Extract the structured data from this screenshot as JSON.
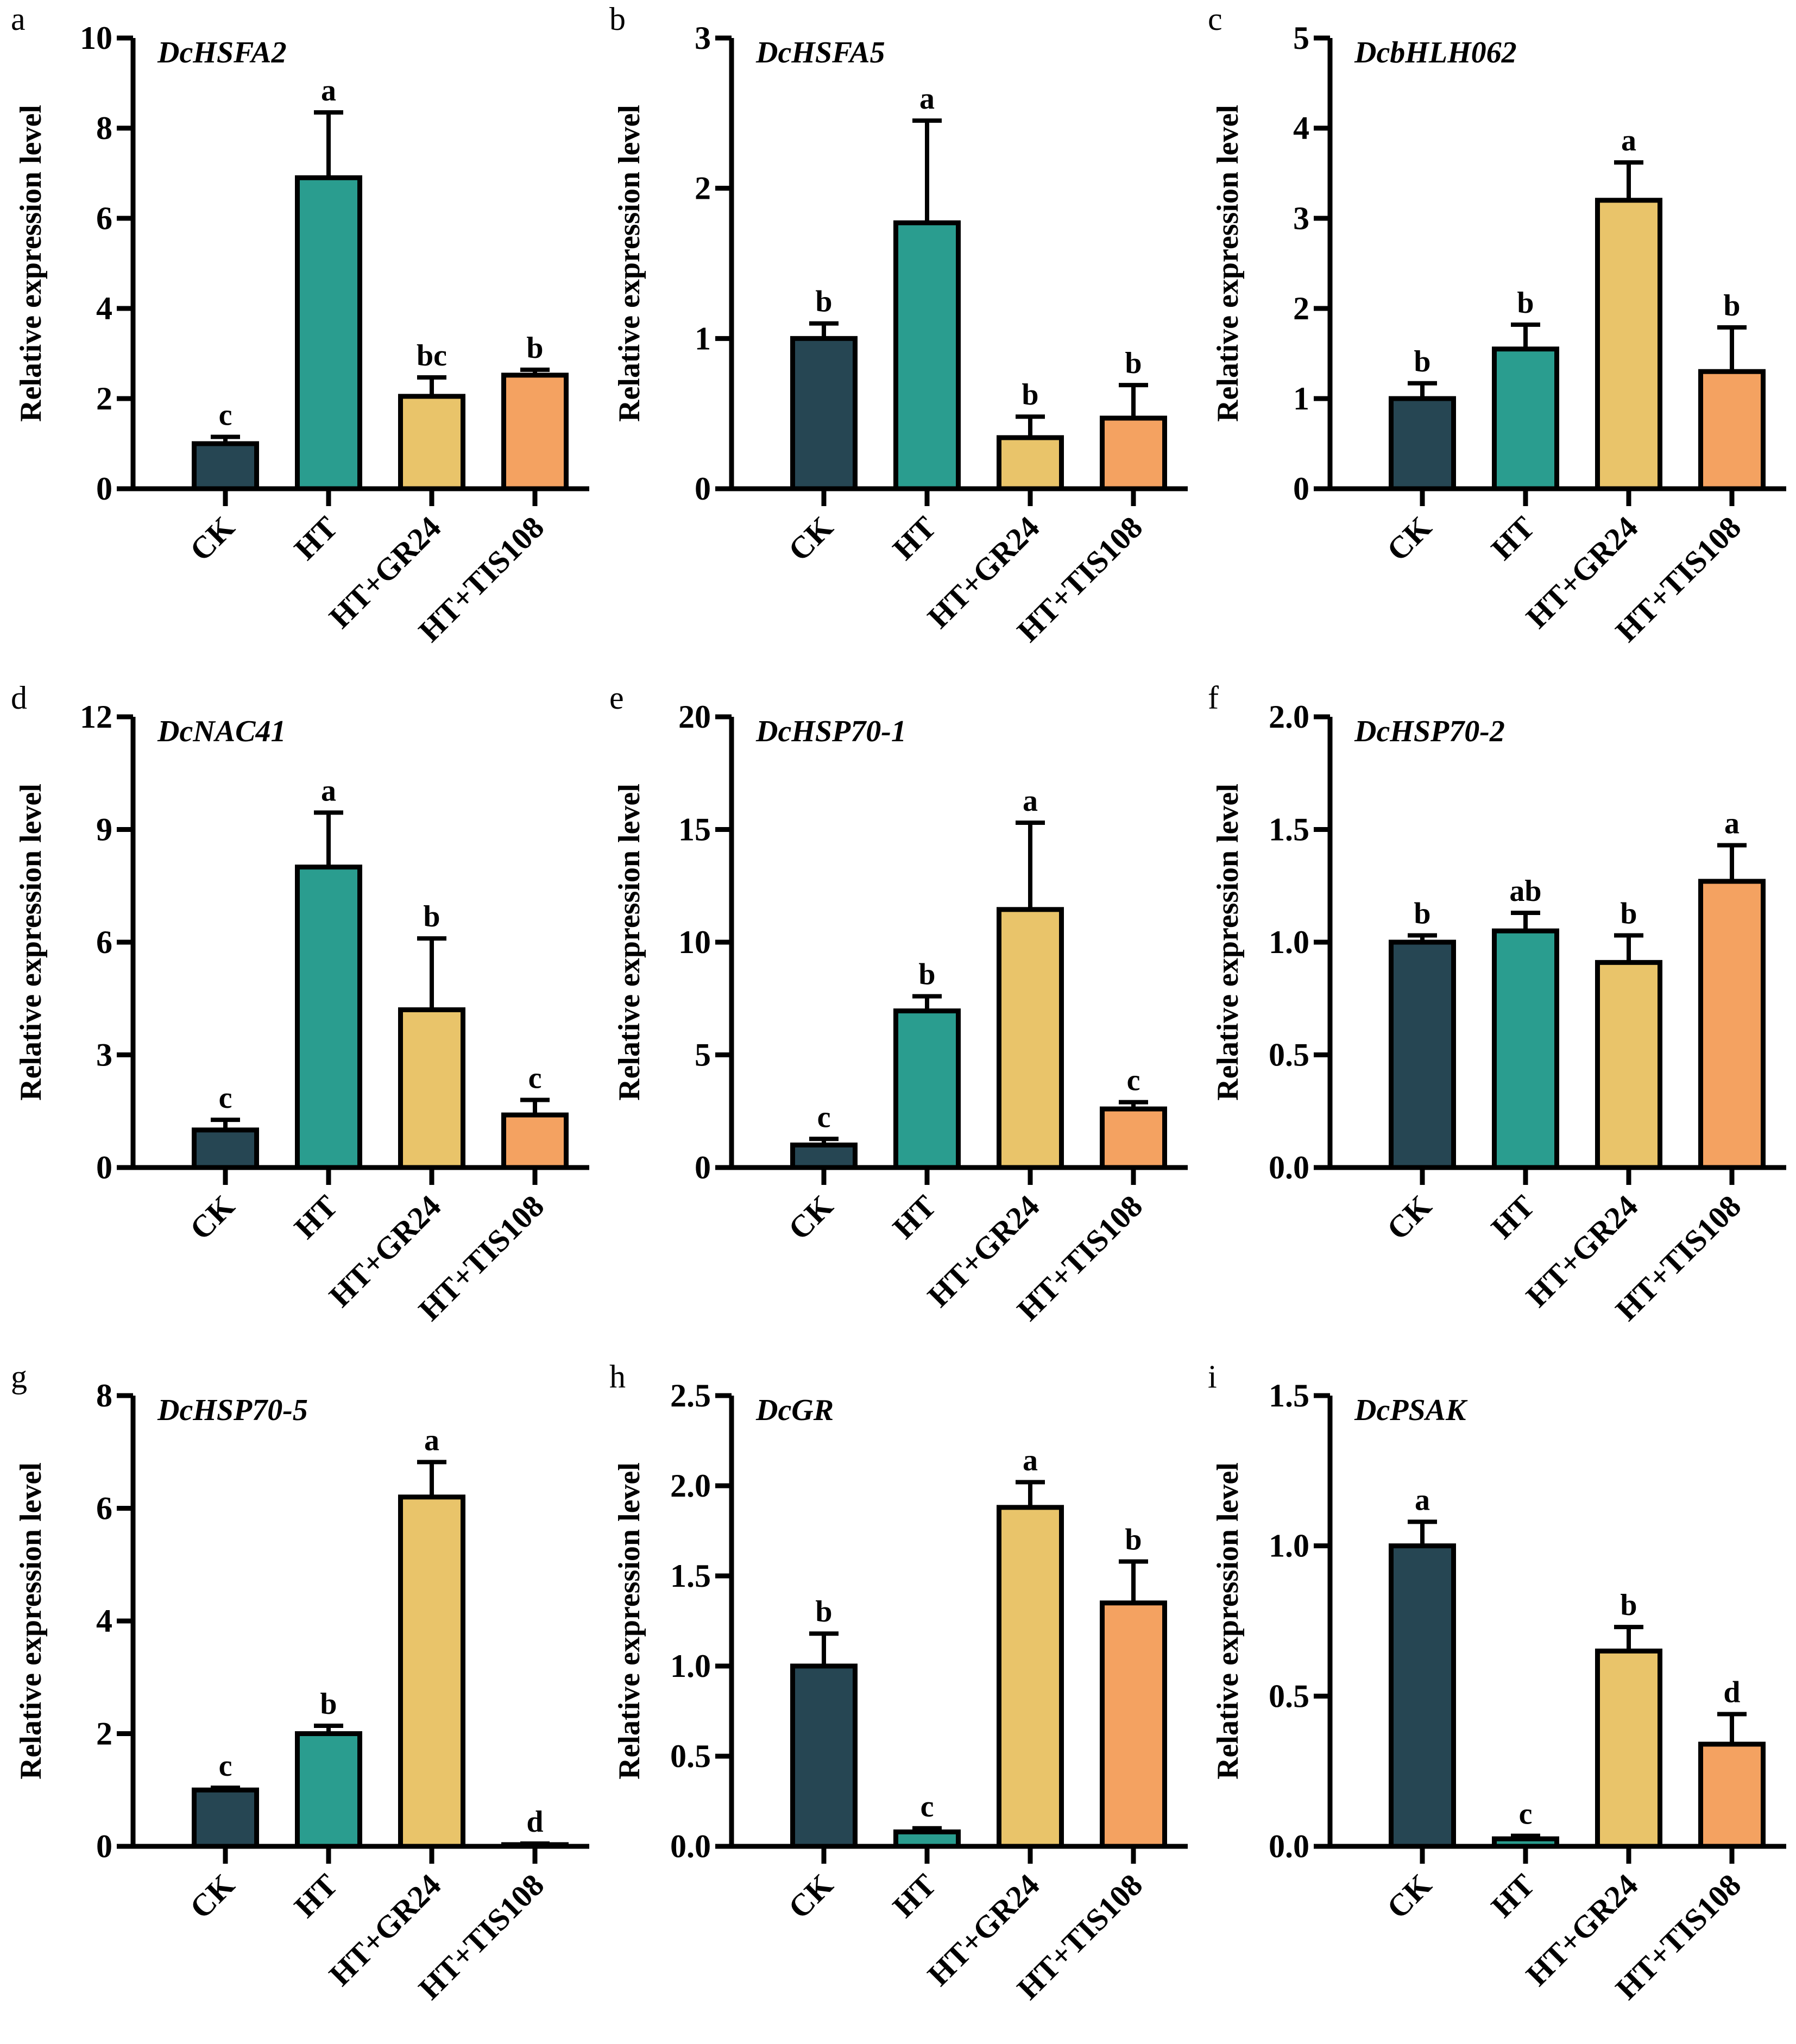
{
  "chart_data": [
    {
      "panel_label": "a",
      "type": "bar",
      "title": "DcHSFA2",
      "xlabel": "",
      "ylabel": "Relative expression level",
      "categories": [
        "CK",
        "HT",
        "HT+GR24",
        "HT+TIS108"
      ],
      "values": [
        1.0,
        6.9,
        2.05,
        2.52
      ],
      "errors": [
        0.15,
        1.45,
        0.42,
        0.12
      ],
      "letters": [
        "c",
        "a",
        "bc",
        "b"
      ],
      "ylim": [
        0,
        10
      ],
      "yticks": [
        "0",
        "2",
        "4",
        "6",
        "8",
        "10"
      ],
      "ytick_values": [
        0,
        2,
        4,
        6,
        8,
        10
      ],
      "grid": false
    },
    {
      "panel_label": "b",
      "type": "bar",
      "title": "DcHSFA5",
      "xlabel": "",
      "ylabel": "Relative expression level",
      "categories": [
        "CK",
        "HT",
        "HT+GR24",
        "HT+TIS108"
      ],
      "values": [
        1.0,
        1.77,
        0.34,
        0.47
      ],
      "errors": [
        0.1,
        0.68,
        0.14,
        0.22
      ],
      "letters": [
        "b",
        "a",
        "b",
        "b"
      ],
      "ylim": [
        0,
        3
      ],
      "yticks": [
        "0",
        "1",
        "2",
        "3"
      ],
      "ytick_values": [
        0,
        1,
        2,
        3
      ],
      "grid": false
    },
    {
      "panel_label": "c",
      "type": "bar",
      "title": "DcbHLH062",
      "xlabel": "",
      "ylabel": "Relative expression level",
      "categories": [
        "CK",
        "HT",
        "HT+GR24",
        "HT+TIS108"
      ],
      "values": [
        1.0,
        1.55,
        3.2,
        1.3
      ],
      "errors": [
        0.17,
        0.27,
        0.42,
        0.49
      ],
      "letters": [
        "b",
        "b",
        "a",
        "b"
      ],
      "ylim": [
        0,
        5
      ],
      "yticks": [
        "0",
        "1",
        "2",
        "3",
        "4",
        "5"
      ],
      "ytick_values": [
        0,
        1,
        2,
        3,
        4,
        5
      ],
      "grid": false
    },
    {
      "panel_label": "d",
      "type": "bar",
      "title": "DcNAC41",
      "xlabel": "",
      "ylabel": "Relative expression level",
      "categories": [
        "CK",
        "HT",
        "HT+GR24",
        "HT+TIS108"
      ],
      "values": [
        1.0,
        8.0,
        4.2,
        1.4
      ],
      "errors": [
        0.27,
        1.45,
        1.9,
        0.4
      ],
      "letters": [
        "c",
        "a",
        "b",
        "c"
      ],
      "ylim": [
        0,
        12
      ],
      "yticks": [
        "0",
        "3",
        "6",
        "9",
        "12"
      ],
      "ytick_values": [
        0,
        3,
        6,
        9,
        12
      ],
      "grid": false
    },
    {
      "panel_label": "e",
      "type": "bar",
      "title": "DcHSP70-1",
      "xlabel": "",
      "ylabel": "Relative expression level",
      "categories": [
        "CK",
        "HT",
        "HT+GR24",
        "HT+TIS108"
      ],
      "values": [
        1.0,
        6.95,
        11.45,
        2.6
      ],
      "errors": [
        0.27,
        0.65,
        3.85,
        0.3
      ],
      "letters": [
        "c",
        "b",
        "a",
        "c"
      ],
      "ylim": [
        0,
        20
      ],
      "yticks": [
        "0",
        "5",
        "10",
        "15",
        "20"
      ],
      "ytick_values": [
        0,
        5,
        10,
        15,
        20
      ],
      "grid": false
    },
    {
      "panel_label": "f",
      "type": "bar",
      "title": "DcHSP70-2",
      "xlabel": "",
      "ylabel": "Relative expression level",
      "categories": [
        "CK",
        "HT",
        "HT+GR24",
        "HT+TIS108"
      ],
      "values": [
        1.0,
        1.05,
        0.91,
        1.27
      ],
      "errors": [
        0.03,
        0.08,
        0.12,
        0.16
      ],
      "letters": [
        "b",
        "ab",
        "b",
        "a"
      ],
      "ylim": [
        0,
        2.0
      ],
      "yticks": [
        "0.0",
        "0.5",
        "1.0",
        "1.5",
        "2.0"
      ],
      "ytick_values": [
        0,
        0.5,
        1.0,
        1.5,
        2.0
      ],
      "grid": false
    },
    {
      "panel_label": "g",
      "type": "bar",
      "title": "DcHSP70-5",
      "xlabel": "",
      "ylabel": "Relative expression level",
      "categories": [
        "CK",
        "HT",
        "HT+GR24",
        "HT+TIS108"
      ],
      "values": [
        1.0,
        2.0,
        6.2,
        0.03
      ],
      "errors": [
        0.04,
        0.14,
        0.62,
        0.02
      ],
      "letters": [
        "c",
        "b",
        "a",
        "d"
      ],
      "ylim": [
        0,
        8
      ],
      "yticks": [
        "0",
        "2",
        "4",
        "6",
        "8"
      ],
      "ytick_values": [
        0,
        2,
        4,
        6,
        8
      ],
      "grid": false
    },
    {
      "panel_label": "h",
      "type": "bar",
      "title": "DcGR",
      "xlabel": "",
      "ylabel": "Relative expression level",
      "categories": [
        "CK",
        "HT",
        "HT+GR24",
        "HT+TIS108"
      ],
      "values": [
        1.0,
        0.08,
        1.88,
        1.35
      ],
      "errors": [
        0.18,
        0.02,
        0.14,
        0.23
      ],
      "letters": [
        "b",
        "c",
        "a",
        "b"
      ],
      "ylim": [
        0,
        2.5
      ],
      "yticks": [
        "0.0",
        "0.5",
        "1.0",
        "1.5",
        "2.0",
        "2.5"
      ],
      "ytick_values": [
        0,
        0.5,
        1.0,
        1.5,
        2.0,
        2.5
      ],
      "grid": false
    },
    {
      "panel_label": "i",
      "type": "bar",
      "title": "DcPSAK",
      "xlabel": "",
      "ylabel": "Relative expression level",
      "categories": [
        "CK",
        "HT",
        "HT+GR24",
        "HT+TIS108"
      ],
      "values": [
        1.0,
        0.025,
        0.65,
        0.34
      ],
      "errors": [
        0.08,
        0.01,
        0.08,
        0.1
      ],
      "letters": [
        "a",
        "c",
        "b",
        "d"
      ],
      "ylim": [
        0,
        1.5
      ],
      "yticks": [
        "0.0",
        "0.5",
        "1.0",
        "1.5"
      ],
      "ytick_values": [
        0,
        0.5,
        1.0,
        1.5
      ],
      "grid": false
    }
  ],
  "colors": {
    "CK": "#264653",
    "HT": "#2a9d8f",
    "HT+GR24": "#e9c46a",
    "HT+TIS108": "#f4a261",
    "outline": "#000000"
  }
}
